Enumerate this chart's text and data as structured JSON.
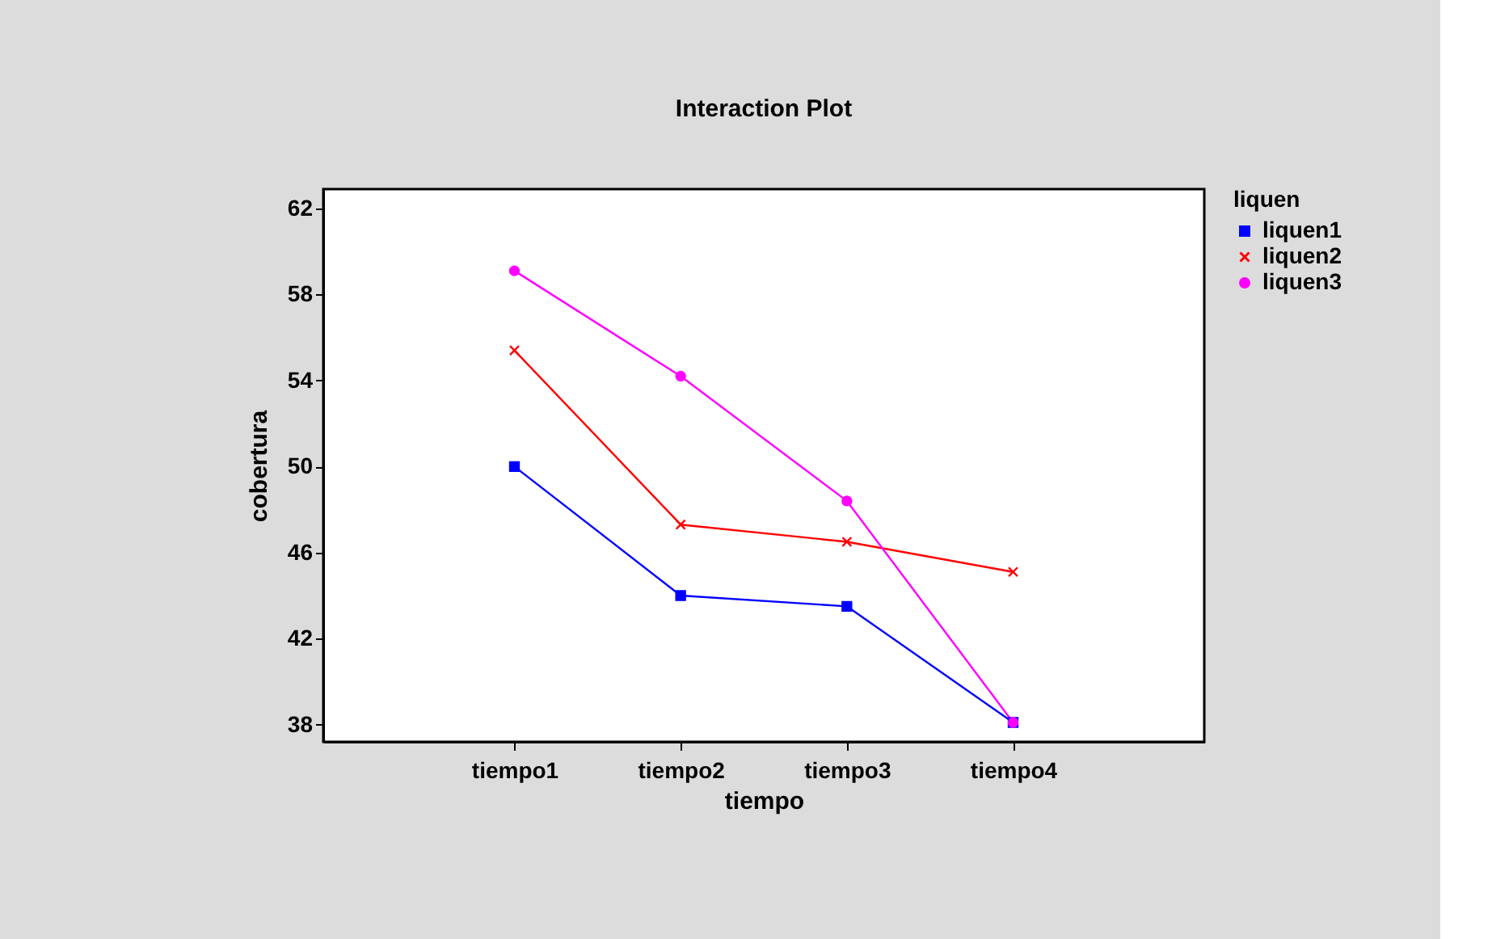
{
  "chart_data": {
    "type": "line",
    "title": "Interaction Plot",
    "xlabel": "tiempo",
    "ylabel": "cobertura",
    "legend_title": "liquen",
    "legend": "right",
    "categories": [
      "tiempo1",
      "tiempo2",
      "tiempo3",
      "tiempo4"
    ],
    "ylim": [
      37.2,
      62.9
    ],
    "yticks": [
      38,
      42,
      46,
      50,
      54,
      58,
      62
    ],
    "grid": false,
    "series": [
      {
        "name": "liquen1",
        "color": "#0000ff",
        "marker": "square",
        "values": [
          50.0,
          44.0,
          43.5,
          38.1
        ]
      },
      {
        "name": "liquen2",
        "color": "#ff0000",
        "marker": "cross",
        "values": [
          55.4,
          47.3,
          46.5,
          45.1
        ]
      },
      {
        "name": "liquen3",
        "color": "#ff00ff",
        "marker": "circle",
        "values": [
          59.1,
          54.2,
          48.4,
          38.1
        ]
      }
    ]
  }
}
